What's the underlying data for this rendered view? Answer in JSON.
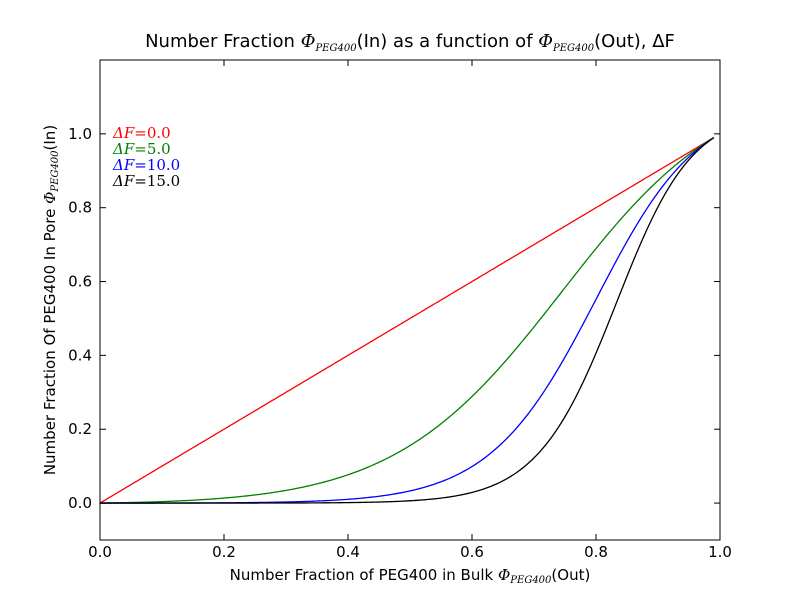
{
  "chart_data": {
    "type": "line",
    "title": {
      "prefix": "Number Fraction ",
      "phi": "Φ",
      "sub1": "PEG400",
      "mid": "(In) as a function of ",
      "phi2": "Φ",
      "sub2": "PEG400",
      "suffix": "(Out), ΔF"
    },
    "xlabel": {
      "prefix": "Number Fraction of PEG400 in Bulk   ",
      "phi": "Φ",
      "sub": "PEG400",
      "suffix": "(Out)"
    },
    "ylabel": {
      "prefix": "Number Fraction Of PEG400 In Pore   ",
      "phi": "Φ",
      "sub": "PEG400",
      "suffix": "(In)"
    },
    "xlim": [
      0.0,
      1.0
    ],
    "ylim": [
      -0.1,
      1.2
    ],
    "x_ticks": [
      "0.0",
      "0.2",
      "0.4",
      "0.6",
      "0.8",
      "1.0"
    ],
    "x_tick_values": [
      0.0,
      0.2,
      0.4,
      0.6,
      0.8,
      1.0
    ],
    "y_ticks": [
      "0.0",
      "0.2",
      "0.4",
      "0.6",
      "0.8",
      "1.0"
    ],
    "y_tick_values": [
      0.0,
      0.2,
      0.4,
      0.6,
      0.8,
      1.0
    ],
    "grid": false,
    "legend_position": "top-left",
    "x_max": 0.99,
    "series": [
      {
        "name": "ΔF=0.0",
        "delta_f": 0.0,
        "color": "#ff0000",
        "label_main": "ΔF",
        "label_eq": "=0.0"
      },
      {
        "name": "ΔF=5.0",
        "delta_f": 5.0,
        "color": "#008000",
        "label_main": "ΔF",
        "label_eq": "=5.0"
      },
      {
        "name": "ΔF=10.0",
        "delta_f": 10.0,
        "color": "#0000ff",
        "label_main": "ΔF",
        "label_eq": "=10.0"
      },
      {
        "name": "ΔF=15.0",
        "delta_f": 15.0,
        "color": "#000000",
        "label_main": "ΔF",
        "label_eq": "=15.0"
      }
    ]
  }
}
